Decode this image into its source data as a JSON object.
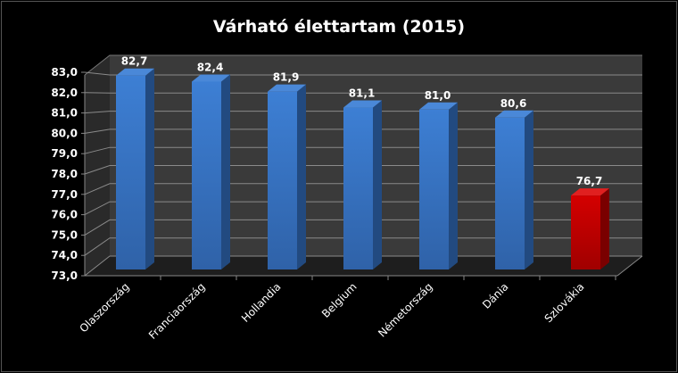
{
  "chart_data": {
    "type": "bar",
    "title": "Várható élettartam (2015)",
    "categories": [
      "Olaszország",
      "Franciaország",
      "Hollandia",
      "Belgium",
      "Németország",
      "Dánia",
      "Szlovákia"
    ],
    "values": [
      82.7,
      82.4,
      81.9,
      81.1,
      81.0,
      80.6,
      76.7
    ],
    "value_labels": [
      "82,7",
      "82,4",
      "81,9",
      "81,1",
      "81,0",
      "80,6",
      "76,7"
    ],
    "ylim": [
      73,
      83
    ],
    "yticks": [
      "73,0",
      "74,0",
      "75,0",
      "76,0",
      "77,0",
      "78,0",
      "79,0",
      "80,0",
      "81,0",
      "82,0",
      "83,0"
    ],
    "xlabel": "",
    "ylabel": "",
    "grid": true,
    "colors": {
      "default": "#3a78c9",
      "highlight": "#c00000"
    },
    "highlight_index": 6
  }
}
